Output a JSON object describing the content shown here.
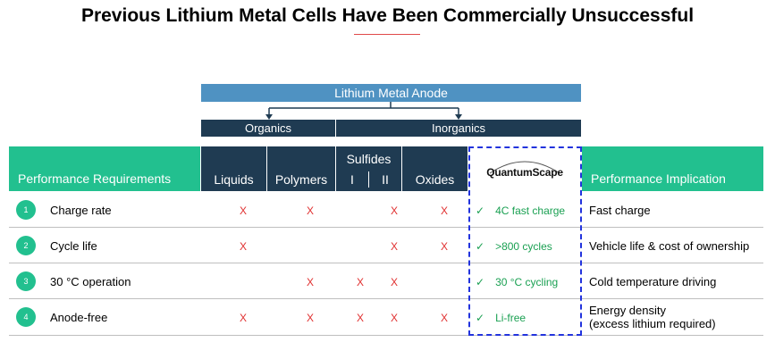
{
  "title": "Previous Lithium Metal Cells Have Been Commercially Unsuccessful",
  "anode_bar": "Lithium Metal Anode",
  "categories": {
    "organics": "Organics",
    "inorganics": "Inorganics"
  },
  "header": {
    "perf_req": "Performance Requirements",
    "liquids": "Liquids",
    "polymers": "Polymers",
    "sulfides": "Sulfides",
    "sulfides_i": "I",
    "sulfides_ii": "II",
    "oxides": "Oxides",
    "qs_logo": "QuantumScape",
    "perf_impl": "Performance Implication"
  },
  "mark": "X",
  "check": "✓",
  "rows": [
    {
      "num": "1",
      "req": "Charge rate",
      "qs": "4C fast charge",
      "impl1": "Fast charge",
      "impl2": "",
      "liquids": "X",
      "polymers": "X",
      "sulf_i": "",
      "sulf_ii": "X",
      "oxides": "X"
    },
    {
      "num": "2",
      "req": "Cycle life",
      "qs": ">800 cycles",
      "impl1": "Vehicle life & cost of ownership",
      "impl2": "",
      "liquids": "X",
      "polymers": "",
      "sulf_i": "",
      "sulf_ii": "X",
      "oxides": "X"
    },
    {
      "num": "3",
      "req": "30 °C operation",
      "qs": "30 °C cycling",
      "impl1": "Cold temperature driving",
      "impl2": "",
      "liquids": "",
      "polymers": "X",
      "sulf_i": "X",
      "sulf_ii": "X",
      "oxides": ""
    },
    {
      "num": "4",
      "req": "Anode-free",
      "qs": "Li-free",
      "impl1": "Energy density",
      "impl2": "(excess lithium required)",
      "liquids": "X",
      "polymers": "X",
      "sulf_i": "X",
      "sulf_ii": "X",
      "oxides": "X"
    }
  ]
}
